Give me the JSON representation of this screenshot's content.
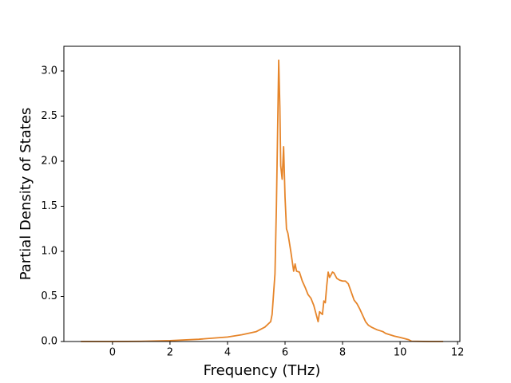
{
  "chart_data": {
    "type": "line",
    "xlabel": "Frequency (THz)",
    "ylabel": "Partial Density of States",
    "x": [
      -1.1,
      0,
      1,
      2,
      3,
      4,
      4.5,
      5,
      5.3,
      5.5,
      5.55,
      5.65,
      5.7,
      5.75,
      5.78,
      5.82,
      5.85,
      5.9,
      5.95,
      6.0,
      6.05,
      6.1,
      6.2,
      6.3,
      6.35,
      6.4,
      6.5,
      6.6,
      6.7,
      6.8,
      6.9,
      7.0,
      7.1,
      7.15,
      7.2,
      7.3,
      7.35,
      7.4,
      7.45,
      7.5,
      7.55,
      7.65,
      7.7,
      7.8,
      7.9,
      8.0,
      8.1,
      8.2,
      8.3,
      8.4,
      8.5,
      8.6,
      8.7,
      8.8,
      8.9,
      9.0,
      9.2,
      9.4,
      9.5,
      9.8,
      10.0,
      10.3,
      10.4,
      11.0,
      11.5
    ],
    "series": [
      {
        "color": "#e6852a",
        "values": [
          0,
          0,
          0.002,
          0.01,
          0.025,
          0.05,
          0.075,
          0.11,
          0.16,
          0.22,
          0.3,
          0.75,
          1.5,
          2.5,
          3.12,
          2.6,
          1.95,
          1.8,
          2.16,
          1.6,
          1.25,
          1.2,
          1.0,
          0.78,
          0.86,
          0.78,
          0.77,
          0.67,
          0.6,
          0.52,
          0.48,
          0.4,
          0.28,
          0.22,
          0.33,
          0.3,
          0.45,
          0.43,
          0.62,
          0.77,
          0.71,
          0.77,
          0.76,
          0.7,
          0.68,
          0.67,
          0.67,
          0.64,
          0.55,
          0.46,
          0.42,
          0.36,
          0.29,
          0.22,
          0.18,
          0.16,
          0.13,
          0.11,
          0.09,
          0.06,
          0.045,
          0.02,
          0.003,
          0,
          0
        ]
      }
    ],
    "xlim": [
      -1.69,
      12.08
    ],
    "ylim": [
      0,
      3.274
    ],
    "xticks": [
      0,
      2,
      4,
      6,
      8,
      10,
      12
    ],
    "yticks": [
      {
        "value": 0,
        "label": "0.0"
      },
      {
        "value": 0.5,
        "label": "0.5"
      },
      {
        "value": 1,
        "label": "1.0"
      },
      {
        "value": 1.5,
        "label": "1.5"
      },
      {
        "value": 2,
        "label": "2.0"
      },
      {
        "value": 2.5,
        "label": "2.5"
      },
      {
        "value": 3,
        "label": "3.0"
      }
    ],
    "grid": false
  }
}
